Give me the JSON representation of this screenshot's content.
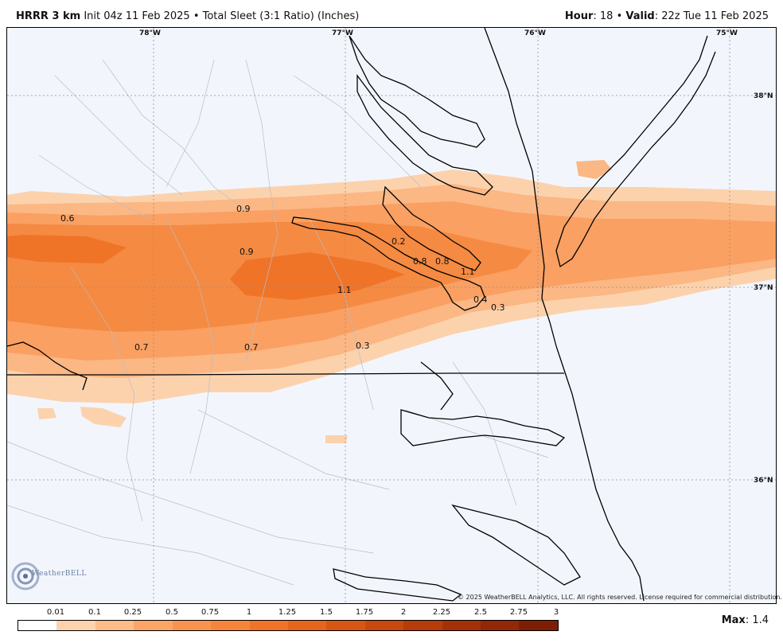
{
  "header": {
    "model": "HRRR 3 km",
    "init": "Init 04z 11 Feb 2025",
    "bullet": "•",
    "product": "Total Sleet (3:1 Ratio) (Inches)",
    "hour_label": "Hour",
    "hour_value": ": 18",
    "valid_label": "Valid",
    "valid_value": ": 22z Tue 11 Feb 2025"
  },
  "map": {
    "lon_labels": [
      "78°W",
      "77°W",
      "76°W",
      "75°W"
    ],
    "lat_labels": [
      "38°N",
      "37°N",
      "36°N"
    ],
    "value_labels": [
      "0.6",
      "0.9",
      "0.9",
      "0.2",
      "0.8",
      "0.8",
      "1.1",
      "1.1",
      "0.4",
      "0.3",
      "0.7",
      "0.7",
      "0.3"
    ],
    "copyright": "© 2025 WeatherBELL Analytics, LLC. All rights reserved. License required for commercial distribution.",
    "logo_text": "WeatherBELL"
  },
  "legend": {
    "ticks": [
      "0.01",
      "0.1",
      "0.25",
      "0.5",
      "0.75",
      "1",
      "1.25",
      "1.5",
      "1.75",
      "2",
      "2.25",
      "2.5",
      "2.75",
      "3"
    ],
    "colors": [
      "#ffffff",
      "#fdd3ae",
      "#fdbc88",
      "#fba666",
      "#f9944e",
      "#f6853c",
      "#ef7428",
      "#e6651c",
      "#d85614",
      "#c9480e",
      "#b73c0b",
      "#a53108",
      "#922807",
      "#7e1f05"
    ],
    "max_label": "Max",
    "max_value": ": 1.4"
  }
}
